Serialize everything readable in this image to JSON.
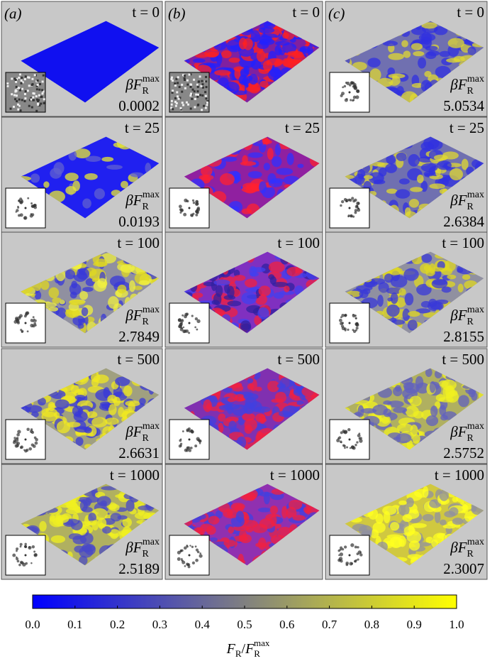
{
  "panel_labels": [
    "(a)",
    "(b)",
    "(c)"
  ],
  "energy_label": {
    "symbol": "βF",
    "sub": "R",
    "sup": "max"
  },
  "rows": [
    {
      "time": "t = 0",
      "values": [
        0.0002,
        null,
        5.0534
      ]
    },
    {
      "time": "t = 25",
      "values": [
        0.0193,
        null,
        2.6384
      ]
    },
    {
      "time": "t = 100",
      "values": [
        2.7849,
        null,
        2.8155
      ]
    },
    {
      "time": "t = 500",
      "values": [
        2.6631,
        null,
        2.5752
      ]
    },
    {
      "time": "t = 1000",
      "values": [
        2.5189,
        null,
        2.3007
      ]
    }
  ],
  "colorbar": {
    "colors": [
      "#0000ff",
      "#808080",
      "#ffff00"
    ],
    "lim": [
      0,
      1
    ],
    "ticks": [
      {
        "value": 0,
        "label": "0.0"
      },
      {
        "value": 0.1,
        "label": "0.1"
      },
      {
        "value": 0.2,
        "label": "0.2"
      },
      {
        "value": 0.3,
        "label": "0.3"
      },
      {
        "value": 0.4,
        "label": "0.4"
      },
      {
        "value": 0.5,
        "label": "0.5"
      },
      {
        "value": 0.6,
        "label": "0.6"
      },
      {
        "value": 0.7,
        "label": "0.7"
      },
      {
        "value": 0.8,
        "label": "0.8"
      },
      {
        "value": 0.9,
        "label": "0.9"
      },
      {
        "value": 1,
        "label": "1.0"
      }
    ],
    "label": {
      "base1": "F",
      "sub1": "R",
      "slash": "/",
      "base2": "F",
      "sub2": "R",
      "sup2": "max"
    }
  }
}
